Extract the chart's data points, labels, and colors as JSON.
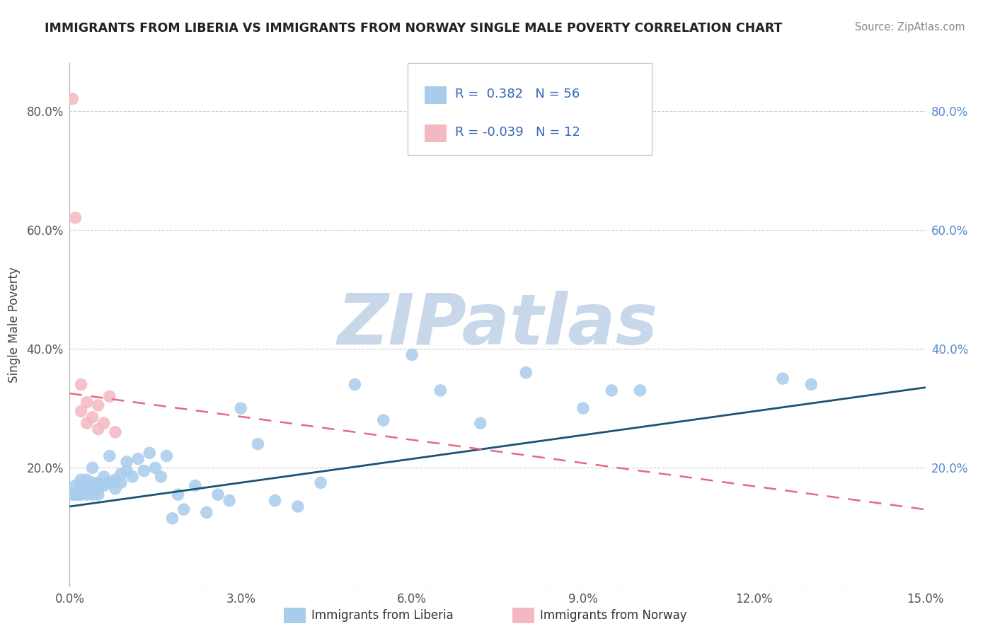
{
  "title": "IMMIGRANTS FROM LIBERIA VS IMMIGRANTS FROM NORWAY SINGLE MALE POVERTY CORRELATION CHART",
  "source": "Source: ZipAtlas.com",
  "ylabel": "Single Male Poverty",
  "legend_label1": "Immigrants from Liberia",
  "legend_label2": "Immigrants from Norway",
  "r1": "0.382",
  "n1": "56",
  "r2": "-0.039",
  "n2": "12",
  "xlim": [
    0.0,
    0.15
  ],
  "ylim": [
    0.0,
    0.88
  ],
  "xticks": [
    0.0,
    0.03,
    0.06,
    0.09,
    0.12,
    0.15
  ],
  "yticks": [
    0.0,
    0.2,
    0.4,
    0.6,
    0.8
  ],
  "xtick_labels": [
    "0.0%",
    "3.0%",
    "6.0%",
    "9.0%",
    "12.0%",
    "15.0%"
  ],
  "ytick_labels": [
    "",
    "20.0%",
    "40.0%",
    "60.0%",
    "80.0%"
  ],
  "color_liberia": "#A8CCEC",
  "color_norway": "#F4B8C1",
  "color_line_liberia": "#1A5276",
  "color_line_norway": "#E8697D",
  "watermark_color": "#C8D8EA",
  "liberia_x": [
    0.0005,
    0.001,
    0.001,
    0.0015,
    0.002,
    0.002,
    0.002,
    0.003,
    0.003,
    0.003,
    0.004,
    0.004,
    0.004,
    0.005,
    0.005,
    0.005,
    0.006,
    0.006,
    0.007,
    0.007,
    0.008,
    0.008,
    0.009,
    0.009,
    0.01,
    0.01,
    0.011,
    0.012,
    0.013,
    0.014,
    0.015,
    0.016,
    0.017,
    0.018,
    0.019,
    0.02,
    0.022,
    0.024,
    0.026,
    0.028,
    0.03,
    0.033,
    0.036,
    0.04,
    0.044,
    0.05,
    0.055,
    0.06,
    0.065,
    0.072,
    0.08,
    0.09,
    0.095,
    0.1,
    0.125,
    0.13
  ],
  "liberia_y": [
    0.155,
    0.155,
    0.17,
    0.155,
    0.155,
    0.17,
    0.18,
    0.155,
    0.165,
    0.18,
    0.155,
    0.175,
    0.2,
    0.155,
    0.175,
    0.165,
    0.17,
    0.185,
    0.175,
    0.22,
    0.18,
    0.165,
    0.19,
    0.175,
    0.195,
    0.21,
    0.185,
    0.215,
    0.195,
    0.225,
    0.2,
    0.185,
    0.22,
    0.115,
    0.155,
    0.13,
    0.17,
    0.125,
    0.155,
    0.145,
    0.3,
    0.24,
    0.145,
    0.135,
    0.175,
    0.34,
    0.28,
    0.39,
    0.33,
    0.275,
    0.36,
    0.3,
    0.33,
    0.33,
    0.35,
    0.34
  ],
  "norway_x": [
    0.0005,
    0.001,
    0.002,
    0.002,
    0.003,
    0.003,
    0.004,
    0.005,
    0.005,
    0.006,
    0.007,
    0.008
  ],
  "norway_y": [
    0.82,
    0.62,
    0.34,
    0.295,
    0.31,
    0.275,
    0.285,
    0.305,
    0.265,
    0.275,
    0.32,
    0.26
  ],
  "liberia_line_x0": 0.0,
  "liberia_line_y0": 0.135,
  "liberia_line_x1": 0.15,
  "liberia_line_y1": 0.335,
  "norway_line_x0": 0.0,
  "norway_line_y0": 0.325,
  "norway_line_x1": 0.15,
  "norway_line_y1": 0.13
}
